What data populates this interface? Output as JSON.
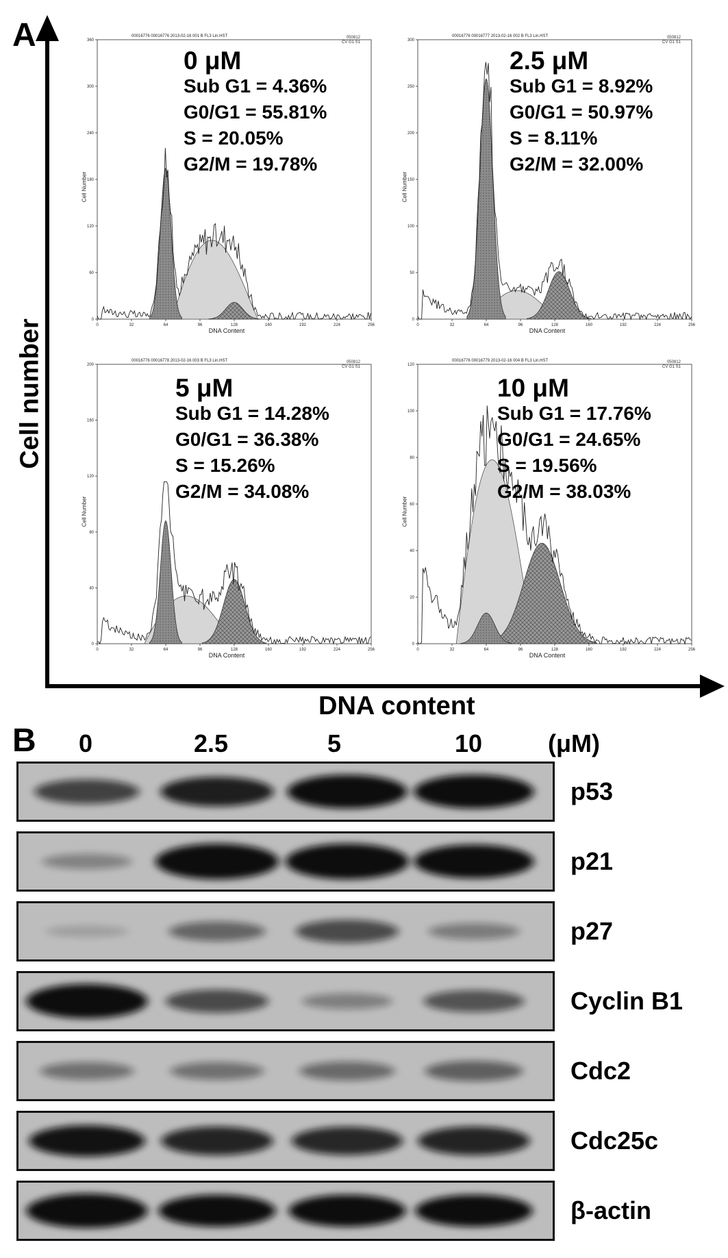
{
  "panel_a": {
    "letter": "A",
    "y_title": "Cell number",
    "x_title": "DNA content",
    "histogram_y_label": "Cell Number",
    "histogram_x_label": "DNA Content",
    "x_ticks": [
      "0",
      "32",
      "64",
      "96",
      "128",
      "160",
      "192",
      "224",
      "256"
    ],
    "histograms": [
      {
        "header": "00016776 00016776 2013-02-16 001 B FL3 Lin.HST",
        "header_right": [
          "050812",
          "CV G1 S1"
        ],
        "y_ticks": [
          "0",
          "60",
          "120",
          "180",
          "240",
          "300",
          "360"
        ],
        "concentration": "0 μM",
        "sub_g1": "Sub G1 = 4.36%",
        "g0_g1": "G0/G1 = 55.81%",
        "s": "S = 20.05%",
        "g2_m": "G2/M = 19.78%"
      },
      {
        "header": "00016776 00016777 2013-02-16 002 B FL3 Lin.HST",
        "header_right": [
          "050812",
          "CV G1 S1"
        ],
        "y_ticks": [
          "0",
          "50",
          "100",
          "150",
          "200",
          "250",
          "300"
        ],
        "concentration": "2.5 μM",
        "sub_g1": "Sub G1 = 8.92%",
        "g0_g1": "G0/G1 = 50.97%",
        "s": "S = 8.11%",
        "g2_m": "G2/M = 32.00%"
      },
      {
        "header": "00016776 00016778 2013-02-16 003 B FL3 Lin.HST",
        "header_right": [
          "050812",
          "CV G1 S1"
        ],
        "y_ticks": [
          "0",
          "40",
          "80",
          "120",
          "160",
          "200"
        ],
        "concentration": "5 μM",
        "sub_g1": "Sub G1 = 14.28%",
        "g0_g1": "G0/G1 = 36.38%",
        "s": "S = 15.26%",
        "g2_m": "G2/M = 34.08%"
      },
      {
        "header": "00016776 00016779 2013-02-16 004 B FL3 Lin.HST",
        "header_right": [
          "050812",
          "CV G1 S1"
        ],
        "y_ticks": [
          "0",
          "20",
          "40",
          "60",
          "80",
          "100",
          "120"
        ],
        "concentration": "10 μM",
        "sub_g1": "Sub G1 = 17.76%",
        "g0_g1": "G0/G1 = 24.65%",
        "s": "S = 19.56%",
        "g2_m": "G2/M = 38.03%"
      }
    ]
  },
  "panel_b": {
    "letter": "B",
    "concentrations": [
      "0",
      "2.5",
      "5",
      "10"
    ],
    "unit": "(μM)",
    "band_color": "#0d0d0d",
    "background_color": "#bdbdbd",
    "rows": [
      {
        "protein": "p53",
        "intensities": [
          0.55,
          0.75,
          0.92,
          0.92
        ]
      },
      {
        "protein": "p21",
        "intensities": [
          0.18,
          1.0,
          1.0,
          0.92
        ]
      },
      {
        "protein": "p27",
        "intensities": [
          0.02,
          0.35,
          0.5,
          0.22
        ]
      },
      {
        "protein": "Cyclin B1",
        "intensities": [
          0.95,
          0.5,
          0.2,
          0.45
        ]
      },
      {
        "protein": "Cdc2",
        "intensities": [
          0.28,
          0.28,
          0.32,
          0.38
        ]
      },
      {
        "protein": "Cdc25c",
        "intensities": [
          0.82,
          0.72,
          0.7,
          0.72
        ]
      },
      {
        "protein": "β-actin",
        "intensities": [
          0.95,
          0.85,
          0.85,
          0.85
        ]
      }
    ]
  }
}
